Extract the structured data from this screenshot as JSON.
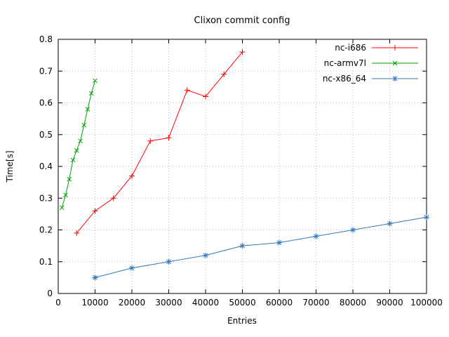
{
  "chart_data": {
    "type": "line",
    "title": "Clixon commit config",
    "xlabel": "Entries",
    "ylabel": "Time[s]",
    "xlim": [
      0,
      100000
    ],
    "ylim": [
      0,
      0.8
    ],
    "grid": true,
    "legend_position": "top-right",
    "x_ticks": [
      {
        "value": 0,
        "label": "0"
      },
      {
        "value": 10000,
        "label": "10000"
      },
      {
        "value": 20000,
        "label": "20000"
      },
      {
        "value": 30000,
        "label": "30000"
      },
      {
        "value": 40000,
        "label": "40000"
      },
      {
        "value": 50000,
        "label": "50000"
      },
      {
        "value": 60000,
        "label": "60000"
      },
      {
        "value": 70000,
        "label": "70000"
      },
      {
        "value": 80000,
        "label": "80000"
      },
      {
        "value": 90000,
        "label": "90000"
      },
      {
        "value": 100000,
        "label": "100000"
      }
    ],
    "y_ticks": [
      {
        "value": 0.0,
        "label": "0"
      },
      {
        "value": 0.1,
        "label": "0.1"
      },
      {
        "value": 0.2,
        "label": "0.2"
      },
      {
        "value": 0.3,
        "label": "0.3"
      },
      {
        "value": 0.4,
        "label": "0.4"
      },
      {
        "value": 0.5,
        "label": "0.5"
      },
      {
        "value": 0.6,
        "label": "0.6"
      },
      {
        "value": 0.7,
        "label": "0.7"
      },
      {
        "value": 0.8,
        "label": "0.8"
      }
    ],
    "series": [
      {
        "name": "nc-i686",
        "color": "#ff0000",
        "marker": "plus",
        "points": [
          [
            5000,
            0.19
          ],
          [
            10000,
            0.26
          ],
          [
            15000,
            0.3
          ],
          [
            20000,
            0.37
          ],
          [
            25000,
            0.48
          ],
          [
            30000,
            0.49
          ],
          [
            35000,
            0.64
          ],
          [
            40000,
            0.62
          ],
          [
            45000,
            0.69
          ],
          [
            50000,
            0.76
          ]
        ]
      },
      {
        "name": "nc-armv7l",
        "color": "#00a000",
        "marker": "x",
        "points": [
          [
            1000,
            0.27
          ],
          [
            2000,
            0.31
          ],
          [
            3000,
            0.36
          ],
          [
            4000,
            0.42
          ],
          [
            5000,
            0.45
          ],
          [
            6000,
            0.48
          ],
          [
            7000,
            0.53
          ],
          [
            8000,
            0.58
          ],
          [
            9000,
            0.63
          ],
          [
            10000,
            0.67
          ]
        ]
      },
      {
        "name": "nc-x86_64",
        "color": "#3377bb",
        "marker": "asterisk",
        "points": [
          [
            10000,
            0.05
          ],
          [
            20000,
            0.08
          ],
          [
            30000,
            0.1
          ],
          [
            40000,
            0.12
          ],
          [
            50000,
            0.15
          ],
          [
            60000,
            0.16
          ],
          [
            70000,
            0.18
          ],
          [
            80000,
            0.2
          ],
          [
            90000,
            0.22
          ],
          [
            100000,
            0.24
          ]
        ]
      }
    ]
  }
}
